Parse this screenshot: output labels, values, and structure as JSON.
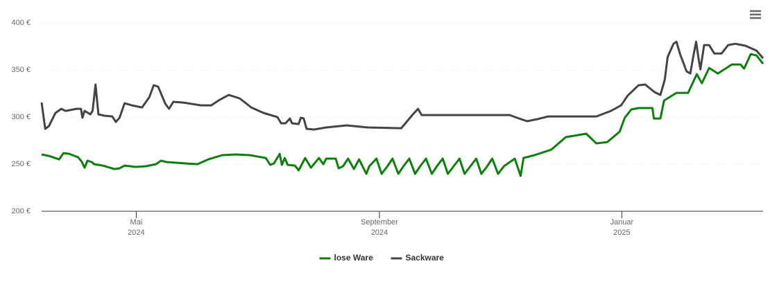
{
  "chart_data": {
    "type": "line",
    "xlim": [
      2024.203,
      2025.194
    ],
    "xticks": [
      {
        "value": 2024.333,
        "label": "Mai"
      },
      {
        "value": 2024.667,
        "label": "September"
      },
      {
        "value": 2025.0,
        "label": "Januar"
      }
    ],
    "xtick_years": [
      "2024",
      "2024",
      "2025"
    ],
    "ylim": [
      200,
      417
    ],
    "yticks": [
      {
        "value": 200,
        "label": "200 €"
      },
      {
        "value": 250,
        "label": "250 €"
      },
      {
        "value": 300,
        "label": "300 €"
      },
      {
        "value": 350,
        "label": "350 €"
      },
      {
        "value": 400,
        "label": "400 €"
      }
    ],
    "grid": true,
    "legend": "bottom",
    "series": [
      {
        "name": "lose Ware",
        "color": "#0a800a",
        "x": [
          2024.203,
          2024.213,
          2024.227,
          2024.233,
          2024.241,
          2024.253,
          2024.258,
          2024.262,
          2024.266,
          2024.272,
          2024.275,
          2024.287,
          2024.303,
          2024.31,
          2024.317,
          2024.325,
          2024.332,
          2024.346,
          2024.36,
          2024.367,
          2024.375,
          2024.389,
          2024.403,
          2024.417,
          2024.432,
          2024.451,
          2024.47,
          2024.489,
          2024.511,
          2024.517,
          2024.522,
          2024.53,
          2024.533,
          2024.537,
          2024.541,
          2024.551,
          2024.556,
          2024.565,
          2024.573,
          2024.584,
          2024.59,
          2024.594,
          2024.607,
          2024.611,
          2024.617,
          2024.624,
          2024.632,
          2024.639,
          2024.649,
          2024.653,
          2024.663,
          2024.67,
          2024.678,
          2024.685,
          2024.693,
          2024.7,
          2024.708,
          2024.716,
          2024.723,
          2024.731,
          2024.739,
          2024.746,
          2024.754,
          2024.761,
          2024.769,
          2024.777,
          2024.784,
          2024.792,
          2024.8,
          2024.807,
          2024.815,
          2024.822,
          2024.83,
          2024.838,
          2024.853,
          2024.861,
          2024.865,
          2024.88,
          2024.903,
          2024.923,
          2024.951,
          2024.965,
          2024.98,
          2024.997,
          2025.004,
          2025.013,
          2025.023,
          2025.042,
          2025.044,
          2025.053,
          2025.058,
          2025.075,
          2025.091,
          2025.103,
          2025.11,
          2025.12,
          2025.132,
          2025.151,
          2025.163,
          2025.168,
          2025.177,
          2025.185,
          2025.194
        ],
        "values": [
          260.3,
          258.8,
          255.1,
          261.8,
          261.0,
          257.4,
          252.9,
          246.3,
          253.7,
          252.2,
          250.0,
          248.5,
          244.9,
          245.6,
          248.5,
          247.8,
          247.1,
          247.8,
          250.0,
          253.7,
          252.2,
          251.5,
          250.7,
          250.0,
          255.1,
          259.6,
          260.3,
          259.6,
          256.6,
          249.3,
          250.7,
          261.0,
          249.3,
          256.6,
          249.3,
          248.5,
          243.4,
          256.6,
          246.3,
          256.6,
          250.0,
          255.9,
          255.9,
          245.6,
          247.8,
          255.9,
          244.9,
          255.1,
          239.7,
          247.8,
          255.9,
          239.7,
          247.8,
          255.9,
          239.7,
          247.8,
          255.9,
          239.7,
          247.8,
          255.9,
          239.7,
          247.8,
          255.9,
          239.7,
          247.8,
          255.9,
          239.7,
          247.8,
          255.9,
          239.7,
          247.8,
          255.9,
          239.7,
          247.8,
          255.9,
          237.5,
          256.6,
          259.6,
          265.4,
          278.7,
          282.4,
          272.1,
          273.5,
          284.6,
          299.3,
          308.1,
          309.6,
          309.6,
          298.5,
          298.5,
          317.6,
          325.7,
          325.7,
          345.6,
          336.0,
          352.2,
          346.3,
          355.9,
          355.9,
          351.5,
          366.9,
          365.4,
          356.6
        ]
      },
      {
        "name": "Sackware",
        "color": "#434348",
        "x": [
          2024.203,
          2024.208,
          2024.213,
          2024.222,
          2024.23,
          2024.236,
          2024.251,
          2024.257,
          2024.259,
          2024.262,
          2024.27,
          2024.273,
          2024.277,
          2024.281,
          2024.289,
          2024.3,
          2024.305,
          2024.31,
          2024.317,
          2024.327,
          2024.341,
          2024.351,
          2024.357,
          2024.363,
          2024.373,
          2024.378,
          2024.384,
          2024.398,
          2024.422,
          2024.436,
          2024.446,
          2024.46,
          2024.475,
          2024.491,
          2024.508,
          2024.527,
          2024.532,
          2024.538,
          2024.544,
          2024.547,
          2024.556,
          2024.559,
          2024.563,
          2024.567,
          2024.577,
          2024.594,
          2024.622,
          2024.651,
          2024.697,
          2024.713,
          2024.72,
          2024.725,
          2024.737,
          2024.775,
          2024.813,
          2024.846,
          2024.856,
          2024.87,
          2024.884,
          2024.899,
          2024.927,
          2024.965,
          2024.985,
          2024.999,
          2025.008,
          2025.023,
          2025.032,
          2025.045,
          2025.053,
          2025.059,
          2025.063,
          2025.071,
          2025.075,
          2025.08,
          2025.089,
          2025.094,
          2025.098,
          2025.102,
          2025.105,
          2025.108,
          2025.113,
          2025.12,
          2025.127,
          2025.137,
          2025.146,
          2025.156,
          2025.17,
          2025.185,
          2025.194
        ],
        "values": [
          315.4,
          287.5,
          290.4,
          304.4,
          308.8,
          306.6,
          308.8,
          308.8,
          299.3,
          306.6,
          302.9,
          306.6,
          334.6,
          302.9,
          301.5,
          300.7,
          294.9,
          299.3,
          314.7,
          312.5,
          310.3,
          321.3,
          333.8,
          332.4,
          314.0,
          308.8,
          316.2,
          315.4,
          312.5,
          312.5,
          317.6,
          323.5,
          319.9,
          310.3,
          304.4,
          300.0,
          293.4,
          293.4,
          298.5,
          293.4,
          292.6,
          299.3,
          298.5,
          287.5,
          286.8,
          289.0,
          291.2,
          289.0,
          288.2,
          302.9,
          308.8,
          302.2,
          302.2,
          302.2,
          302.2,
          302.2,
          299.3,
          295.6,
          297.8,
          300.7,
          300.7,
          300.7,
          306.6,
          312.5,
          322.8,
          333.8,
          334.6,
          326.5,
          323.5,
          339.7,
          364.0,
          377.9,
          380.1,
          366.9,
          348.5,
          346.3,
          364.0,
          380.1,
          364.0,
          350.7,
          376.5,
          376.5,
          367.6,
          367.6,
          376.5,
          377.9,
          375.7,
          370.6,
          362.5
        ]
      }
    ]
  }
}
